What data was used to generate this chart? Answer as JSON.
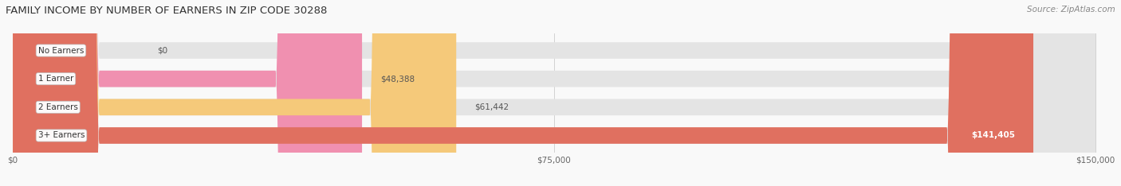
{
  "title": "FAMILY INCOME BY NUMBER OF EARNERS IN ZIP CODE 30288",
  "source": "Source: ZipAtlas.com",
  "categories": [
    "No Earners",
    "1 Earner",
    "2 Earners",
    "3+ Earners"
  ],
  "values": [
    0,
    48388,
    61442,
    141405
  ],
  "max_value": 150000,
  "bar_colors": [
    "#a0a8d8",
    "#f090b0",
    "#f5c97a",
    "#e07060"
  ],
  "value_labels": [
    "$0",
    "$48,388",
    "$61,442",
    "$141,405"
  ],
  "x_ticks": [
    0,
    75000,
    150000
  ],
  "x_tick_labels": [
    "$0",
    "$75,000",
    "$150,000"
  ],
  "title_fontsize": 9.5,
  "source_fontsize": 7.5,
  "bar_label_fontsize": 7.5,
  "value_fontsize": 7.5,
  "fig_width": 14.06,
  "fig_height": 2.34,
  "background_color": "#f9f9f9"
}
